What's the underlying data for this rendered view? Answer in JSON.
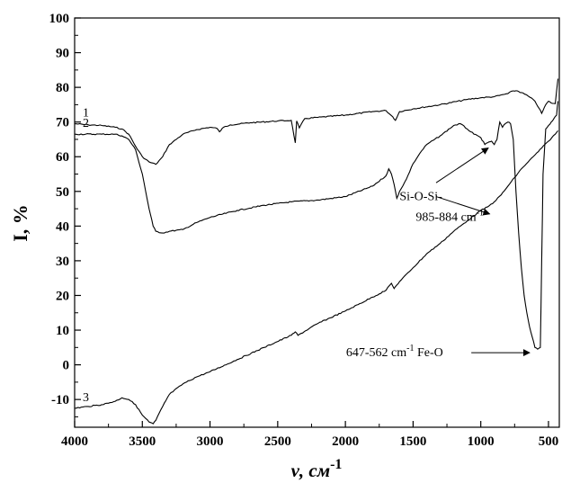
{
  "chart_data": {
    "type": "line",
    "title": "",
    "xlabel": "ν, см",
    "xlabel_sup": "-1",
    "ylabel": "I, %",
    "xlim": [
      4000,
      420
    ],
    "ylim": [
      -18,
      100
    ],
    "x_ticks": [
      4000,
      3500,
      3000,
      2500,
      2000,
      1500,
      1000,
      500
    ],
    "y_ticks": [
      -10,
      0,
      10,
      20,
      30,
      40,
      50,
      60,
      70,
      80,
      90,
      100
    ],
    "grid": false,
    "series": [
      {
        "name": "1",
        "x": [
          4000,
          3900,
          3800,
          3700,
          3650,
          3600,
          3550,
          3500,
          3450,
          3400,
          3350,
          3300,
          3200,
          3100,
          3000,
          2950,
          2930,
          2900,
          2850,
          2700,
          2500,
          2400,
          2370,
          2360,
          2340,
          2300,
          2000,
          1800,
          1700,
          1650,
          1630,
          1600,
          1500,
          1300,
          1100,
          1000,
          900,
          800,
          760,
          730,
          700,
          650,
          600,
          570,
          550,
          520,
          500,
          480,
          450,
          430
        ],
        "y": [
          69.5,
          69.2,
          69.0,
          68.5,
          68.0,
          66.5,
          63.0,
          60.0,
          58.5,
          57.8,
          60.0,
          63.5,
          66.5,
          67.8,
          68.5,
          68.2,
          67.2,
          68.5,
          69.2,
          69.8,
          70.3,
          70.5,
          64.0,
          70.3,
          68.3,
          71.0,
          72.0,
          73.0,
          73.3,
          71.5,
          70.5,
          73.0,
          73.8,
          75.0,
          76.5,
          77.0,
          77.3,
          78.2,
          79.0,
          79.0,
          78.5,
          77.5,
          76.0,
          74.0,
          72.5,
          75.0,
          76.0,
          75.5,
          75.3,
          82.5
        ]
      },
      {
        "name": "2",
        "x": [
          4000,
          3800,
          3700,
          3650,
          3600,
          3550,
          3500,
          3450,
          3420,
          3400,
          3350,
          3300,
          3200,
          3100,
          3000,
          2800,
          2600,
          2400,
          2200,
          2000,
          1800,
          1700,
          1680,
          1660,
          1640,
          1620,
          1600,
          1550,
          1500,
          1450,
          1400,
          1300,
          1200,
          1150,
          1100,
          1050,
          1000,
          970,
          950,
          920,
          900,
          880,
          860,
          840,
          820,
          800,
          780,
          760,
          740,
          720,
          700,
          680,
          660,
          640,
          620,
          600,
          580,
          560,
          550,
          540,
          520,
          500,
          480,
          460,
          440,
          430
        ],
        "y": [
          66.5,
          66.5,
          66.5,
          66.0,
          65.0,
          62.0,
          55.0,
          45.0,
          40.0,
          38.5,
          38.0,
          38.5,
          39.0,
          41.0,
          42.5,
          44.5,
          46.0,
          47.0,
          47.5,
          48.5,
          51.5,
          54.5,
          56.5,
          55.0,
          52.0,
          48.0,
          50.0,
          53.5,
          58.0,
          61.0,
          63.5,
          66.0,
          69.0,
          69.5,
          68.0,
          66.5,
          65.5,
          63.5,
          64.0,
          64.5,
          63.5,
          65.0,
          70.0,
          68.5,
          69.5,
          70.0,
          69.5,
          65.0,
          50.0,
          38.0,
          28.0,
          20.0,
          15.0,
          11.0,
          8.0,
          5.0,
          4.5,
          5.0,
          30.0,
          55.0,
          68.0,
          69.0,
          70.0,
          71.0,
          72.0,
          76.0
        ]
      },
      {
        "name": "3",
        "x": [
          4000,
          3900,
          3800,
          3700,
          3650,
          3600,
          3550,
          3500,
          3450,
          3420,
          3400,
          3350,
          3300,
          3200,
          3100,
          3000,
          2800,
          2600,
          2400,
          2370,
          2350,
          2200,
          2000,
          1800,
          1700,
          1660,
          1640,
          1620,
          1600,
          1500,
          1400,
          1300,
          1200,
          1100,
          1000,
          950,
          900,
          850,
          800,
          750,
          700,
          650,
          600,
          550,
          500,
          450,
          430
        ],
        "y": [
          -12.5,
          -12.0,
          -11.5,
          -10.5,
          -9.5,
          -10.0,
          -11.5,
          -14.5,
          -16.5,
          -17.0,
          -16.0,
          -12.0,
          -8.5,
          -5.5,
          -3.5,
          -2.0,
          1.5,
          5.0,
          8.5,
          9.5,
          8.5,
          12.0,
          15.5,
          19.5,
          21.5,
          23.5,
          22.0,
          23.0,
          24.0,
          28.0,
          32.0,
          35.0,
          38.5,
          41.5,
          44.5,
          45.5,
          47.0,
          49.0,
          51.5,
          54.0,
          56.5,
          58.5,
          60.5,
          62.5,
          64.5,
          66.5,
          67.5
        ]
      }
    ],
    "annotations": [
      {
        "text": "Si-O-Si-",
        "x": 1600,
        "y": 47.5
      },
      {
        "text": "985-884 cm",
        "sup": "-1",
        "x": 1480,
        "y": 41.5
      },
      {
        "text": "647-562 cm",
        "sup": "-1",
        "tail": " Fe-O",
        "x": 1995,
        "y": 2.5
      }
    ],
    "arrows": [
      {
        "from": [
          1330,
          52.5
        ],
        "to": [
          945,
          62.5
        ]
      },
      {
        "from": [
          1330,
          48.5
        ],
        "to": [
          935,
          43.5
        ]
      },
      {
        "from": [
          1070,
          3.5
        ],
        "to": [
          640,
          3.5
        ]
      }
    ]
  }
}
